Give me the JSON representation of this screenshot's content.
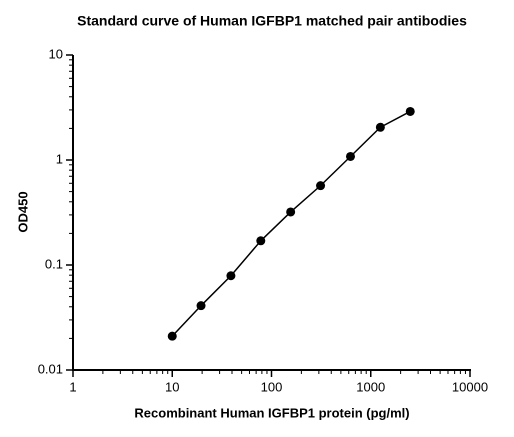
{
  "chart_data": {
    "type": "scatter",
    "title": "Standard curve of Human IGFBP1 matched pair antibodies",
    "x_label": "Recombinant Human IGFBP1 protein (pg/ml)",
    "y_label": "OD450",
    "x": [
      10,
      19.5,
      39,
      78,
      156,
      312,
      625,
      1250,
      2500
    ],
    "series": [
      {
        "values": [
          0.021,
          0.041,
          0.079,
          0.17,
          0.32,
          0.57,
          1.08,
          2.05,
          2.9
        ],
        "color": "#000000"
      }
    ],
    "xlim": [
      1,
      10000
    ],
    "ylim": [
      0.01,
      10
    ],
    "xticks": [
      1,
      10,
      100,
      1000,
      10000
    ],
    "yticks": [
      0.01,
      0.1,
      1,
      10
    ],
    "x_log": true,
    "y_log": true,
    "line": true
  }
}
